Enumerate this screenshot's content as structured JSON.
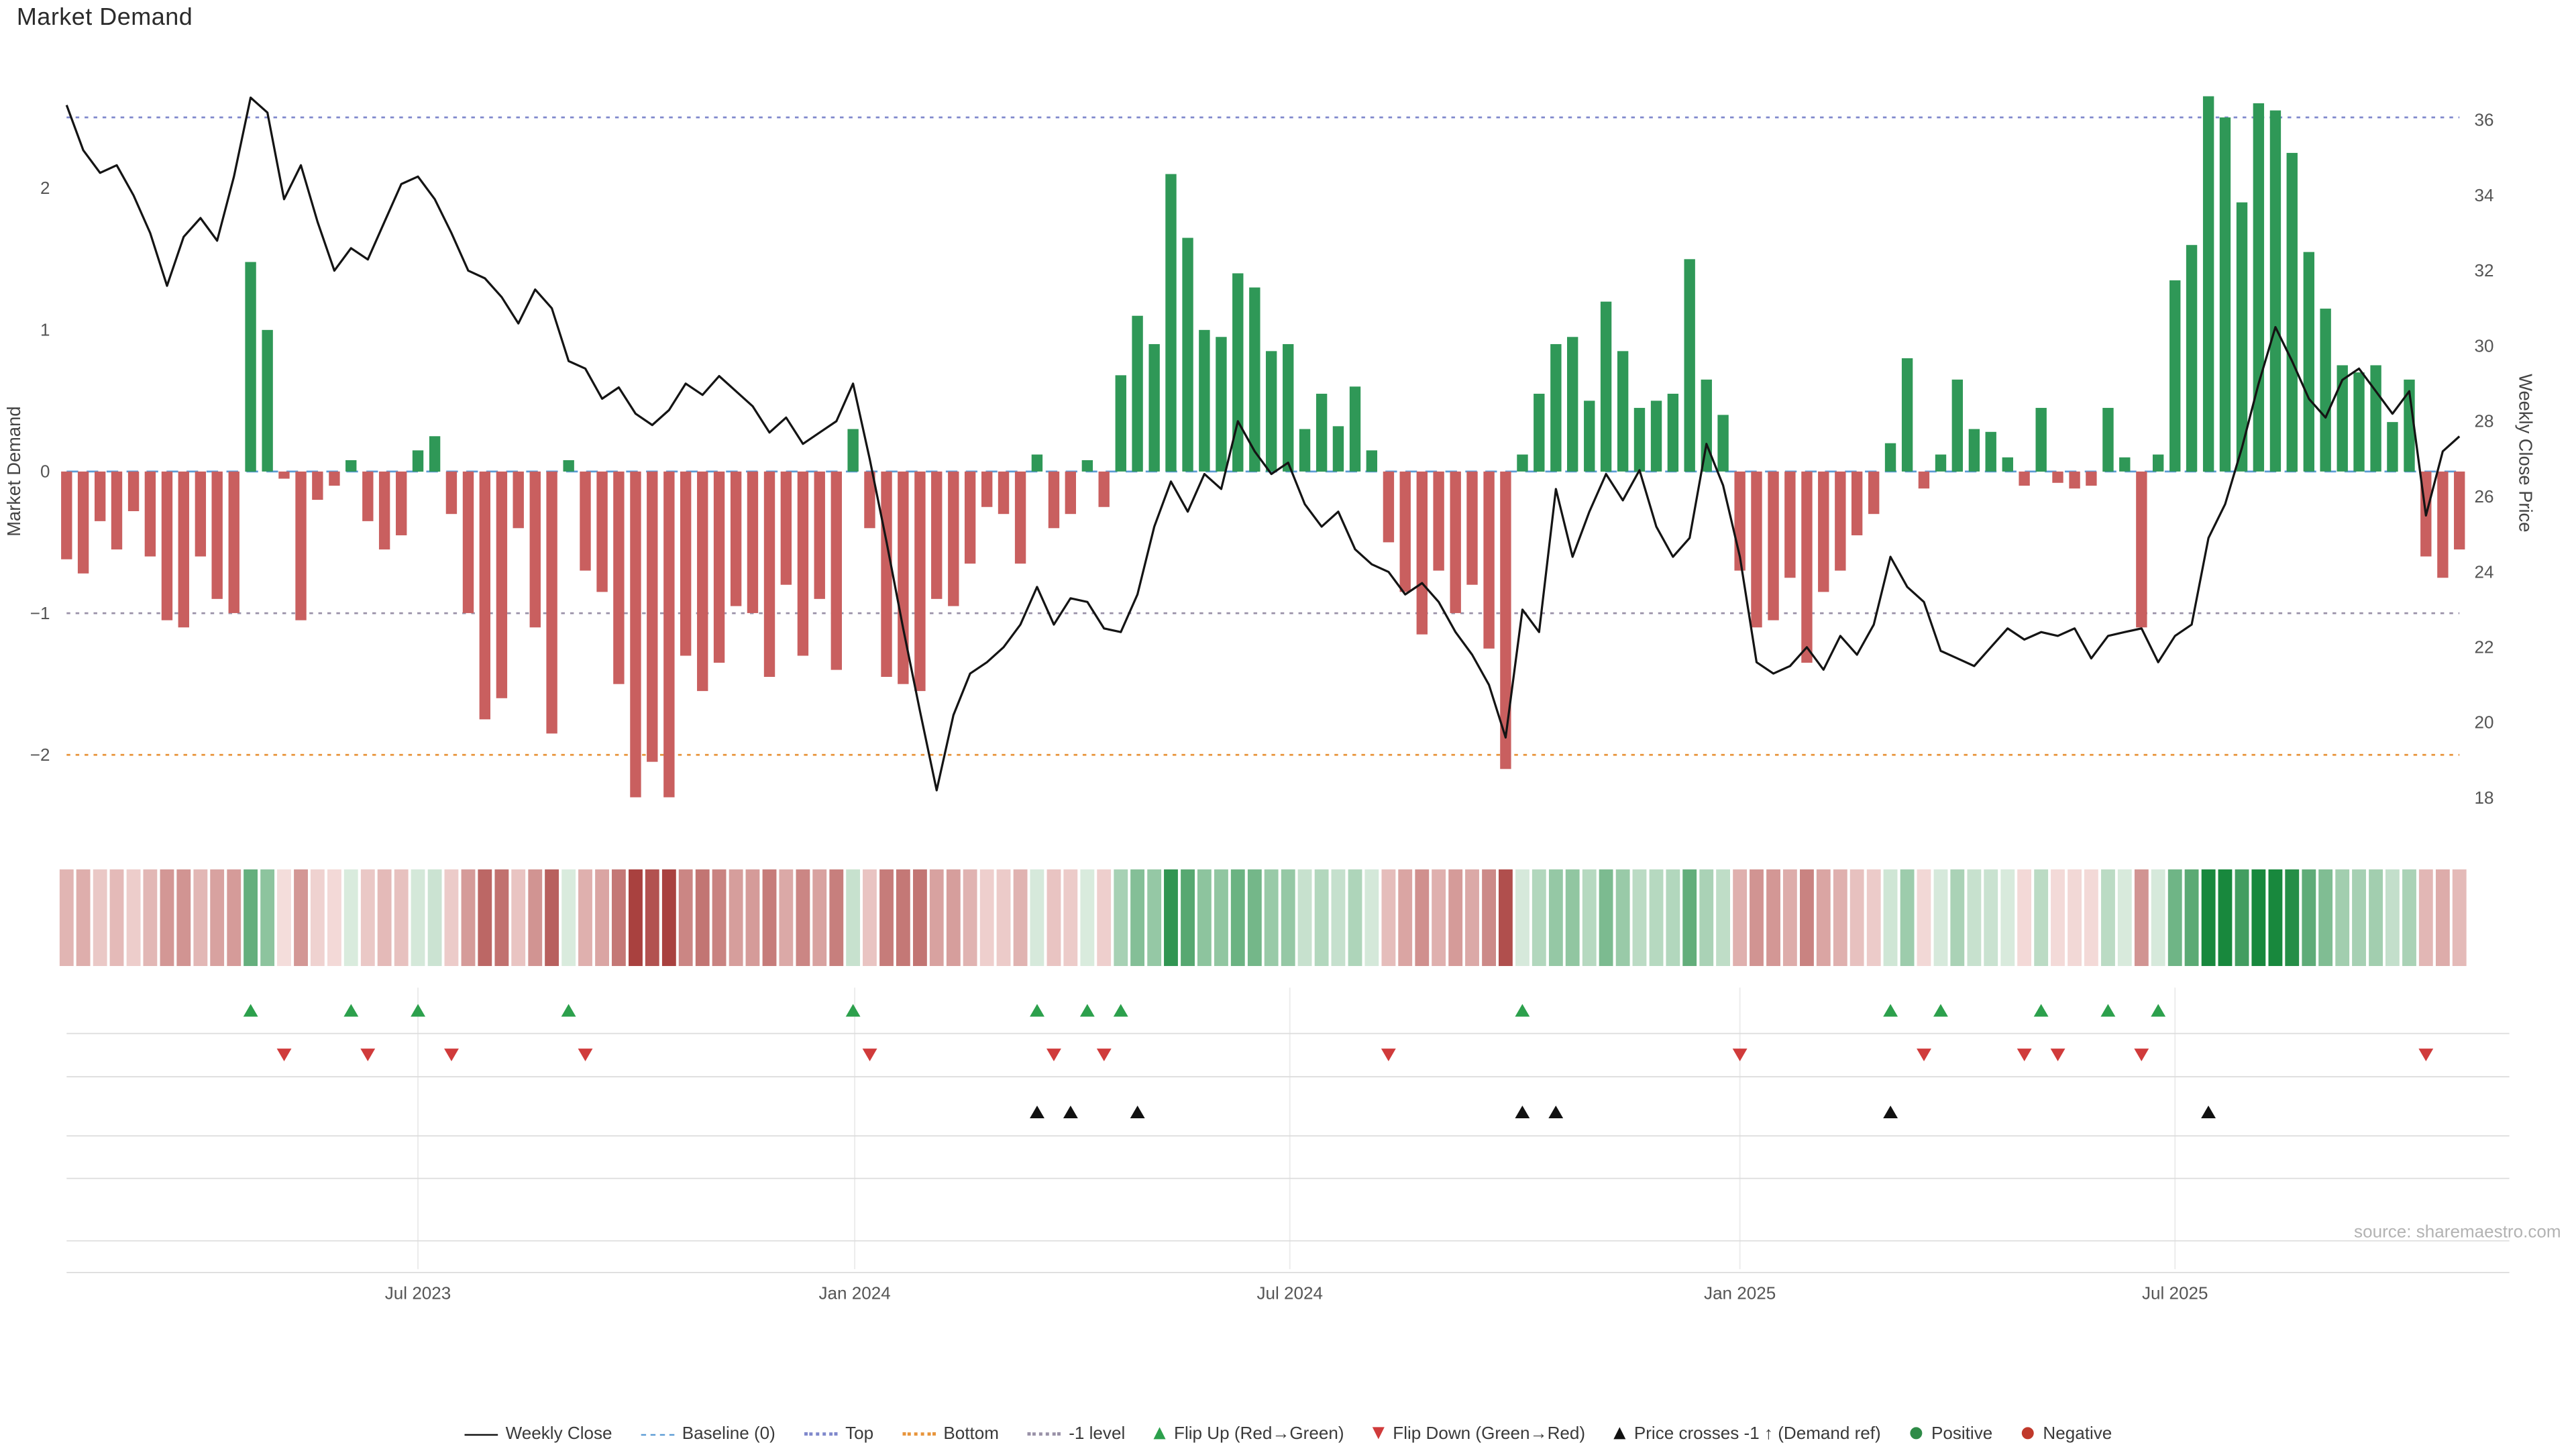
{
  "page": {
    "title": "Market Demand",
    "source": "source: sharemaestro.com"
  },
  "colors": {
    "positive": "#2f9857",
    "negative": "#c95f5f",
    "price_line": "#141414",
    "baseline": "#5b9bd5",
    "top_level": "#8089cc",
    "bottom_level": "#e8953c",
    "minus1_level": "#9a92a8",
    "flip_up": "#2ca04c",
    "flip_down": "#d03b3b",
    "price_cross": "#111111",
    "heatmap_negative_scale": [
      "#f6e0de",
      "#a63a38"
    ],
    "heatmap_positive_scale": [
      "#e0eee3",
      "#18883d"
    ]
  },
  "chart_data": {
    "type": "bar+line dual-axis with heatmap strip and event marker rows",
    "title": "Market Demand",
    "n_points": 144,
    "x_frequency": "weekly",
    "x_range_estimate": [
      "Feb 2023",
      "Nov 2025"
    ],
    "x_ticks": [
      {
        "label": "Jul 2023",
        "index": 21
      },
      {
        "label": "Jan 2024",
        "index": 47.1
      },
      {
        "label": "Jul 2024",
        "index": 73.1
      },
      {
        "label": "Jan 2025",
        "index": 100
      },
      {
        "label": "Jul 2025",
        "index": 126
      }
    ],
    "axes": {
      "left": {
        "label": "Market Demand",
        "range": [
          -2.55,
          2.8
        ],
        "ticks": [
          {
            "value": 2,
            "label": "2"
          },
          {
            "value": 1,
            "label": "1"
          },
          {
            "value": 0,
            "label": "0"
          },
          {
            "value": -1,
            "label": "−1"
          },
          {
            "value": -2,
            "label": "−2"
          }
        ]
      },
      "right": {
        "label": "Weekly Close Price",
        "range": [
          17.07,
          37.2
        ],
        "ticks": [
          {
            "value": 18,
            "label": "18"
          },
          {
            "value": 20,
            "label": "20"
          },
          {
            "value": 22,
            "label": "22"
          },
          {
            "value": 24,
            "label": "24"
          },
          {
            "value": 26,
            "label": "26"
          },
          {
            "value": 28,
            "label": "28"
          },
          {
            "value": 30,
            "label": "30"
          },
          {
            "value": 32,
            "label": "32"
          },
          {
            "value": 34,
            "label": "34"
          },
          {
            "value": 36,
            "label": "36"
          }
        ]
      }
    },
    "reference_lines": [
      {
        "key": "top",
        "name": "Top",
        "value": 2.5,
        "style": "dotted",
        "color": "#8089cc"
      },
      {
        "key": "baseline",
        "name": "Baseline (0)",
        "value": 0,
        "style": "dashed",
        "color": "#5b9bd5"
      },
      {
        "key": "minus1",
        "name": "-1 level",
        "value": -1.0,
        "style": "dotted",
        "color": "#9a92a8"
      },
      {
        "key": "bottom",
        "name": "Bottom",
        "value": -2.0,
        "style": "dotted",
        "color": "#e8953c"
      }
    ],
    "series": [
      {
        "name": "Market Demand",
        "type": "bar",
        "yaxis": "left",
        "values": [
          -0.62,
          -0.72,
          -0.35,
          -0.55,
          -0.28,
          -0.6,
          -1.05,
          -1.1,
          -0.6,
          -0.9,
          -1.0,
          1.48,
          1.0,
          -0.05,
          -1.05,
          -0.2,
          -0.1,
          0.08,
          -0.35,
          -0.55,
          -0.45,
          0.15,
          0.25,
          -0.3,
          -1.0,
          -1.75,
          -1.6,
          -0.4,
          -1.1,
          -1.85,
          0.08,
          -0.7,
          -0.85,
          -1.5,
          -2.3,
          -2.05,
          -2.3,
          -1.3,
          -1.55,
          -1.35,
          -0.95,
          -1.0,
          -1.45,
          -0.8,
          -1.3,
          -0.9,
          -1.4,
          0.3,
          -0.4,
          -1.45,
          -1.5,
          -1.55,
          -0.9,
          -0.95,
          -0.65,
          -0.25,
          -0.3,
          -0.65,
          0.12,
          -0.4,
          -0.3,
          0.08,
          -0.25,
          0.68,
          1.1,
          0.9,
          2.1,
          1.65,
          1.0,
          0.95,
          1.4,
          1.3,
          0.85,
          0.9,
          0.3,
          0.55,
          0.32,
          0.6,
          0.15,
          -0.5,
          -0.85,
          -1.15,
          -0.7,
          -1.0,
          -0.8,
          -1.25,
          -2.1,
          0.12,
          0.55,
          0.9,
          0.95,
          0.5,
          1.2,
          0.85,
          0.45,
          0.5,
          0.55,
          1.5,
          0.65,
          0.4,
          -0.7,
          -1.1,
          -1.05,
          -0.75,
          -1.35,
          -0.85,
          -0.7,
          -0.45,
          -0.3,
          0.2,
          0.8,
          -0.12,
          0.12,
          0.65,
          0.3,
          0.28,
          0.1,
          -0.1,
          0.45,
          -0.08,
          -0.12,
          -0.1,
          0.45,
          0.1,
          -1.1,
          0.12,
          1.35,
          1.6,
          2.65,
          2.5,
          1.9,
          2.6,
          2.55,
          2.25,
          1.55,
          1.15,
          0.75,
          0.7,
          0.75,
          0.35,
          0.65,
          -0.6,
          -0.75,
          -0.55
        ]
      },
      {
        "name": "Weekly Close",
        "type": "line",
        "yaxis": "right",
        "values": [
          36.4,
          35.2,
          34.6,
          34.8,
          34.0,
          33.0,
          31.6,
          32.9,
          33.4,
          32.8,
          34.5,
          36.6,
          36.2,
          33.9,
          34.8,
          33.3,
          32.0,
          32.6,
          32.3,
          33.3,
          34.3,
          34.5,
          33.9,
          33.0,
          32.0,
          31.8,
          31.3,
          30.6,
          31.5,
          31.0,
          29.6,
          29.4,
          28.6,
          28.9,
          28.2,
          27.9,
          28.3,
          29.0,
          28.7,
          29.2,
          28.8,
          28.4,
          27.7,
          28.1,
          27.4,
          27.7,
          28.0,
          29.0,
          27.0,
          24.8,
          22.5,
          20.3,
          18.2,
          20.2,
          21.3,
          21.6,
          22.0,
          22.6,
          23.6,
          22.6,
          23.3,
          23.2,
          22.5,
          22.4,
          23.4,
          25.2,
          26.4,
          25.6,
          26.6,
          26.2,
          28.0,
          27.2,
          26.6,
          26.9,
          25.8,
          25.2,
          25.6,
          24.6,
          24.2,
          24.0,
          23.4,
          23.7,
          23.2,
          22.4,
          21.8,
          21.0,
          19.6,
          23.0,
          22.4,
          26.2,
          24.4,
          25.6,
          26.6,
          25.9,
          26.7,
          25.2,
          24.4,
          24.9,
          27.4,
          26.3,
          24.4,
          21.6,
          21.3,
          21.5,
          22.0,
          21.4,
          22.3,
          21.8,
          22.6,
          24.4,
          23.6,
          23.2,
          21.9,
          21.7,
          21.5,
          22.0,
          22.5,
          22.2,
          22.4,
          22.3,
          22.5,
          21.7,
          22.3,
          22.4,
          22.5,
          21.6,
          22.3,
          22.6,
          24.9,
          25.8,
          27.3,
          29.0,
          30.5,
          29.6,
          28.6,
          28.1,
          29.1,
          29.4,
          28.8,
          28.2,
          28.8,
          25.5,
          27.2,
          27.6
        ]
      }
    ],
    "heatmap": {
      "description": "weekly cells colored by Market Demand sign and magnitude",
      "max_abs_for_scale": 2.4
    },
    "markers": {
      "flip_up_indices": [
        11,
        17,
        21,
        30,
        47,
        58,
        61,
        63,
        87,
        109,
        112,
        118,
        122,
        125
      ],
      "flip_down_indices": [
        13,
        18,
        23,
        31,
        48,
        59,
        62,
        79,
        100,
        111,
        117,
        119,
        124,
        141
      ],
      "price_cross_up_indices": [
        58,
        60,
        64,
        87,
        89,
        109,
        128
      ]
    }
  },
  "legend": {
    "items": [
      {
        "label": "Weekly Close",
        "icon": "solid-line",
        "color": "#141414"
      },
      {
        "label": "Baseline (0)",
        "icon": "dashed-line",
        "color": "#5b9bd5"
      },
      {
        "label": "Top",
        "icon": "dotted-line",
        "color": "#8089cc"
      },
      {
        "label": "Bottom",
        "icon": "dotted-line",
        "color": "#e8953c"
      },
      {
        "label": "-1 level",
        "icon": "dotted-line",
        "color": "#9a92a8"
      },
      {
        "label": "Flip Up (Red→Green)",
        "icon": "triangle-up",
        "color": "#2ca04c"
      },
      {
        "label": "Flip Down (Green→Red)",
        "icon": "triangle-down",
        "color": "#d03b3b"
      },
      {
        "label": "Price crosses -1 ↑ (Demand ref)",
        "icon": "triangle-up",
        "color": "#111111"
      },
      {
        "label": "Positive",
        "icon": "circle",
        "color": "#2e8b47"
      },
      {
        "label": "Negative",
        "icon": "circle",
        "color": "#c0392b"
      }
    ]
  }
}
